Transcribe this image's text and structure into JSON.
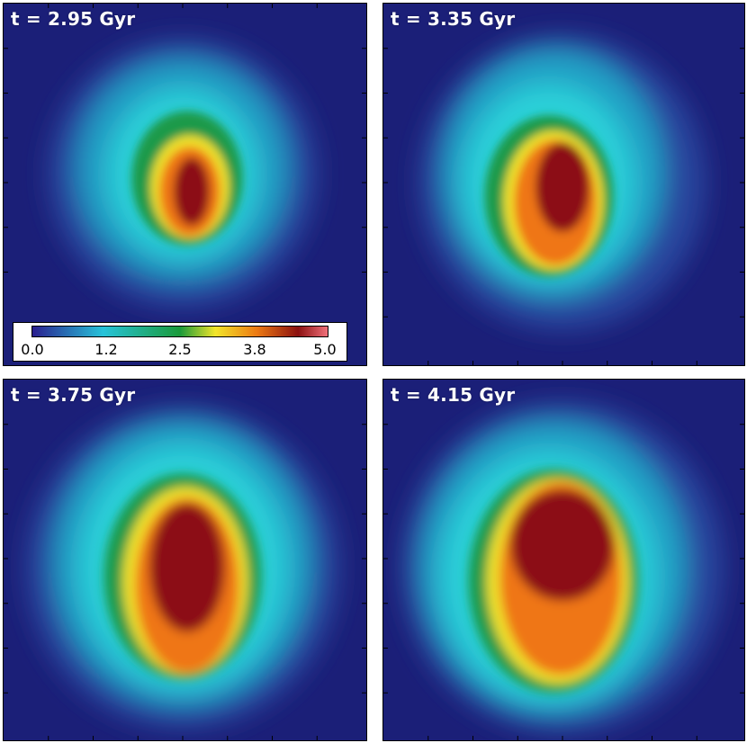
{
  "panels": [
    {
      "label": "t = 2.95 Gyr"
    },
    {
      "label": "t = 3.35 Gyr"
    },
    {
      "label": "t = 3.75 Gyr"
    },
    {
      "label": "t = 4.15 Gyr"
    }
  ],
  "colorbar": {
    "ticks": [
      "0.0",
      "1.2",
      "2.5",
      "3.8",
      "5.0"
    ],
    "colors": [
      "#2a1f8f",
      "#27c3d9",
      "#1a9a3a",
      "#f2e52a",
      "#ec7a13",
      "#8b1010",
      "#f0707a"
    ]
  },
  "colors": {
    "background": "#1b1f78",
    "cyan": "#30d6e0",
    "green": "#1f9a4a",
    "yellow": "#f0e02a",
    "orange": "#ef7616",
    "dark_red": "#8c0f12"
  }
}
